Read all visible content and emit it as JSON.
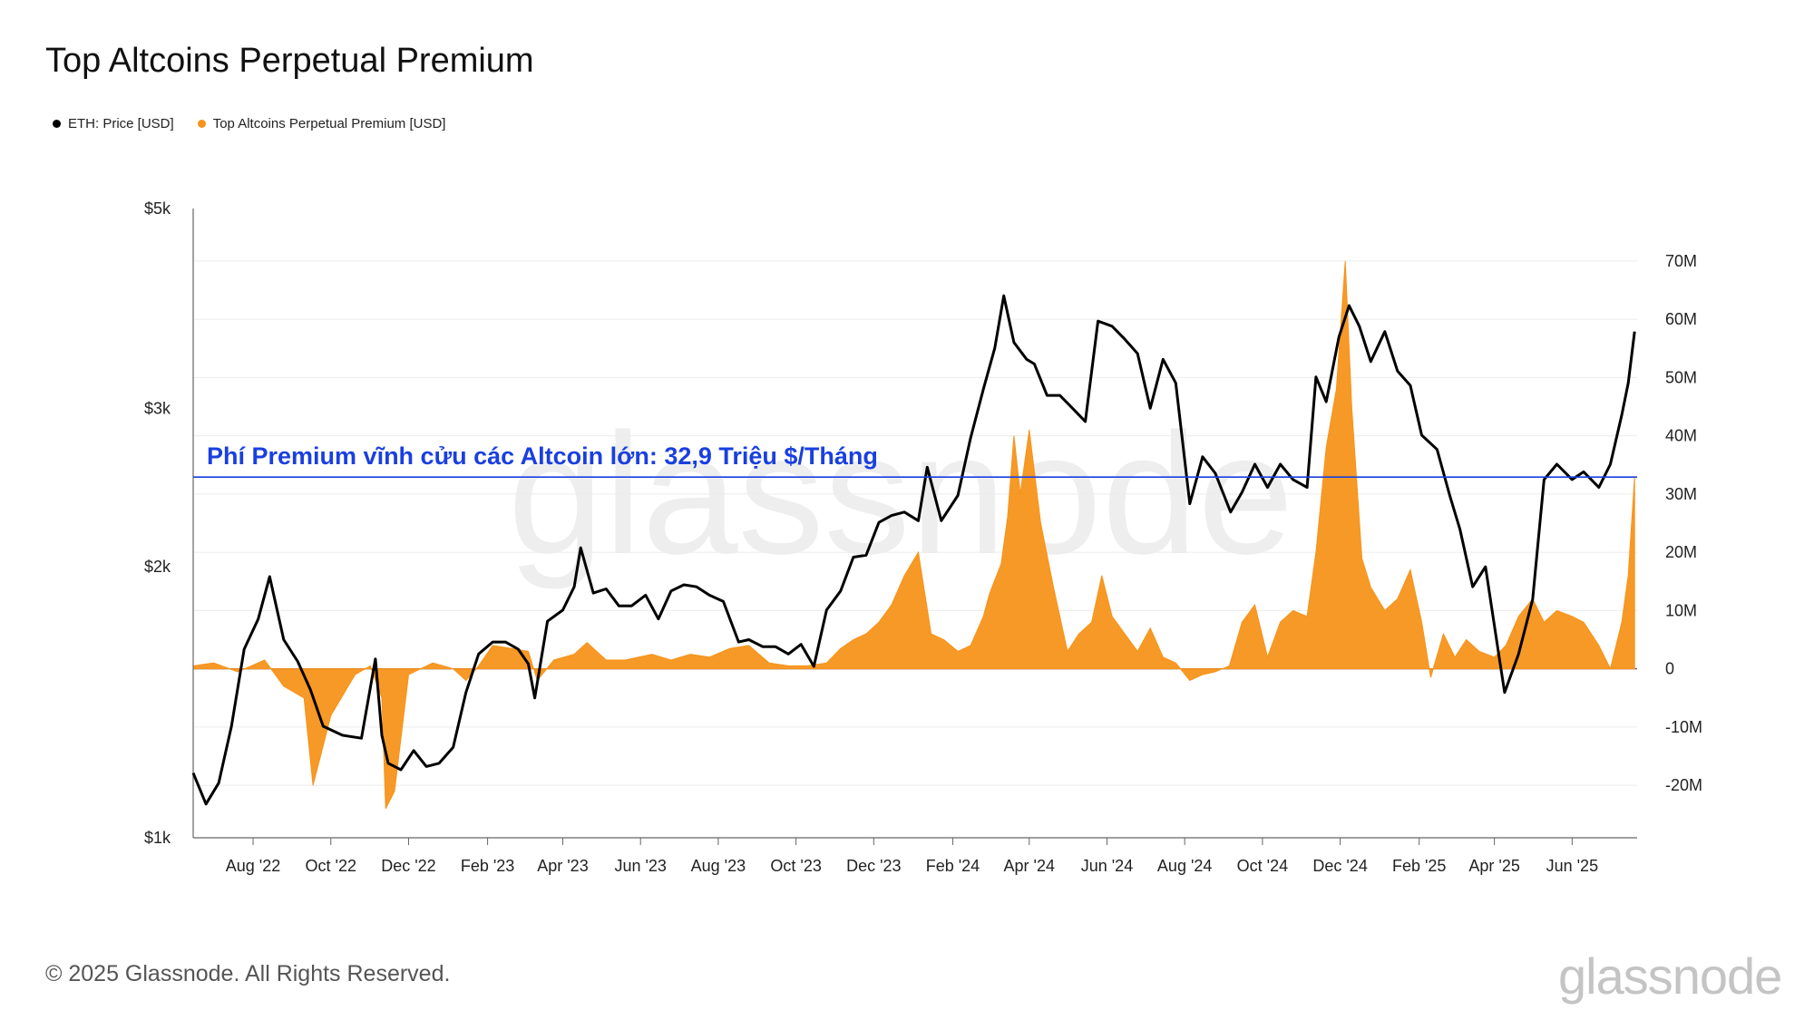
{
  "header": {
    "title": "Top Altcoins Perpetual Premium"
  },
  "legend": [
    {
      "label": "ETH: Price [USD]",
      "color": "#000000"
    },
    {
      "label": "Top Altcoins Perpetual Premium [USD]",
      "color": "#f7931a"
    }
  ],
  "footer": {
    "copyright": "© 2025 Glassnode. All Rights Reserved.",
    "brand": "glassnode",
    "watermark": "glassnode"
  },
  "chart_data": {
    "type": "line",
    "title": "Top Altcoins Perpetual Premium",
    "x_tick_labels": [
      "Aug '22",
      "Oct '22",
      "Dec '22",
      "Feb '23",
      "Apr '23",
      "Jun '23",
      "Aug '23",
      "Oct '23",
      "Dec '23",
      "Feb '24",
      "Apr '24",
      "Jun '24",
      "Aug '24",
      "Oct '24",
      "Dec '24",
      "Feb '25",
      "Apr '25",
      "Jun '25"
    ],
    "y_left": {
      "scale": "log",
      "ticks": [
        "$1k",
        "$2k",
        "$3k",
        "$5k"
      ],
      "values": [
        1000,
        2000,
        3000,
        5000
      ],
      "range": [
        1000,
        5000
      ]
    },
    "y_right": {
      "scale": "linear",
      "ticks": [
        "70M",
        "60M",
        "50M",
        "40M",
        "30M",
        "20M",
        "10M",
        "0",
        "-10M",
        "-20M"
      ],
      "values": [
        70,
        60,
        50,
        40,
        30,
        20,
        10,
        0,
        -10,
        -20
      ],
      "range": [
        -29,
        79
      ]
    },
    "annotation": {
      "text": "Phí  Premium vĩnh cửu các Altcoin lớn: 32,9 Triệu $/Tháng",
      "value": 32.9,
      "color": "#1a3fe0"
    },
    "grid": true,
    "legend_position": "top-left",
    "series": [
      {
        "name": "ETH: Price [USD]",
        "axis": "left",
        "color": "#000000",
        "kind": "line",
        "x": [
          "2022-06-15",
          "2022-06-25",
          "2022-07-05",
          "2022-07-15",
          "2022-07-25",
          "2022-08-05",
          "2022-08-14",
          "2022-08-25",
          "2022-09-05",
          "2022-09-15",
          "2022-09-25",
          "2022-10-10",
          "2022-10-25",
          "2022-11-05",
          "2022-11-10",
          "2022-11-15",
          "2022-11-25",
          "2022-12-05",
          "2022-12-15",
          "2022-12-25",
          "2023-01-05",
          "2023-01-15",
          "2023-01-25",
          "2023-02-05",
          "2023-02-15",
          "2023-02-25",
          "2023-03-05",
          "2023-03-10",
          "2023-03-20",
          "2023-04-01",
          "2023-04-10",
          "2023-04-15",
          "2023-04-25",
          "2023-05-05",
          "2023-05-15",
          "2023-05-25",
          "2023-06-05",
          "2023-06-15",
          "2023-06-25",
          "2023-07-05",
          "2023-07-15",
          "2023-07-25",
          "2023-08-05",
          "2023-08-17",
          "2023-08-25",
          "2023-09-05",
          "2023-09-15",
          "2023-09-25",
          "2023-10-05",
          "2023-10-15",
          "2023-10-25",
          "2023-11-05",
          "2023-11-15",
          "2023-11-25",
          "2023-12-05",
          "2023-12-15",
          "2023-12-25",
          "2024-01-05",
          "2024-01-12",
          "2024-01-23",
          "2024-02-05",
          "2024-02-15",
          "2024-02-25",
          "2024-03-05",
          "2024-03-12",
          "2024-03-20",
          "2024-03-30",
          "2024-04-05",
          "2024-04-15",
          "2024-04-25",
          "2024-05-05",
          "2024-05-15",
          "2024-05-25",
          "2024-06-05",
          "2024-06-15",
          "2024-06-25",
          "2024-07-05",
          "2024-07-15",
          "2024-07-25",
          "2024-08-05",
          "2024-08-15",
          "2024-08-25",
          "2024-09-06",
          "2024-09-15",
          "2024-09-25",
          "2024-10-05",
          "2024-10-15",
          "2024-10-25",
          "2024-11-05",
          "2024-11-12",
          "2024-11-20",
          "2024-11-30",
          "2024-12-08",
          "2024-12-16",
          "2024-12-25",
          "2025-01-05",
          "2025-01-15",
          "2025-01-25",
          "2025-02-03",
          "2025-02-15",
          "2025-02-25",
          "2025-03-05",
          "2025-03-15",
          "2025-03-25",
          "2025-04-05",
          "2025-04-09",
          "2025-04-20",
          "2025-05-01",
          "2025-05-10",
          "2025-05-20",
          "2025-06-01",
          "2025-06-10",
          "2025-06-22",
          "2025-07-01",
          "2025-07-10",
          "2025-07-15",
          "2025-07-20"
        ],
        "values": [
          1180,
          1090,
          1150,
          1330,
          1620,
          1750,
          1950,
          1660,
          1570,
          1460,
          1330,
          1300,
          1290,
          1580,
          1300,
          1210,
          1190,
          1250,
          1200,
          1210,
          1260,
          1450,
          1600,
          1650,
          1650,
          1620,
          1560,
          1430,
          1740,
          1790,
          1900,
          2100,
          1870,
          1890,
          1810,
          1810,
          1860,
          1750,
          1880,
          1910,
          1900,
          1860,
          1830,
          1650,
          1660,
          1630,
          1630,
          1600,
          1640,
          1550,
          1790,
          1880,
          2050,
          2060,
          2240,
          2280,
          2300,
          2250,
          2580,
          2250,
          2400,
          2780,
          3150,
          3500,
          4000,
          3550,
          3400,
          3360,
          3100,
          3100,
          3000,
          2900,
          3750,
          3700,
          3580,
          3450,
          3000,
          3400,
          3200,
          2350,
          2650,
          2540,
          2300,
          2420,
          2600,
          2450,
          2600,
          2500,
          2450,
          3250,
          3050,
          3600,
          3900,
          3700,
          3380,
          3650,
          3300,
          3180,
          2800,
          2700,
          2400,
          2200,
          1900,
          2000,
          1580,
          1450,
          1600,
          1840,
          2500,
          2600,
          2500,
          2550,
          2450,
          2600,
          2950,
          3200,
          3650
        ]
      },
      {
        "name": "Top Altcoins Perpetual Premium [USD]",
        "axis": "right",
        "color": "#f7931a",
        "kind": "area",
        "unit": "M USD",
        "x": [
          "2022-06-15",
          "2022-07-01",
          "2022-07-20",
          "2022-08-10",
          "2022-08-25",
          "2022-09-10",
          "2022-09-17",
          "2022-10-01",
          "2022-10-20",
          "2022-11-01",
          "2022-11-10",
          "2022-11-13",
          "2022-11-20",
          "2022-12-01",
          "2022-12-20",
          "2023-01-05",
          "2023-01-15",
          "2023-01-25",
          "2023-02-05",
          "2023-02-20",
          "2023-03-05",
          "2023-03-12",
          "2023-03-25",
          "2023-04-10",
          "2023-04-20",
          "2023-05-05",
          "2023-05-20",
          "2023-06-10",
          "2023-06-25",
          "2023-07-10",
          "2023-07-25",
          "2023-08-10",
          "2023-08-25",
          "2023-09-10",
          "2023-09-25",
          "2023-10-10",
          "2023-10-25",
          "2023-11-05",
          "2023-11-15",
          "2023-11-25",
          "2023-12-05",
          "2023-12-15",
          "2023-12-25",
          "2024-01-05",
          "2024-01-15",
          "2024-01-25",
          "2024-02-05",
          "2024-02-15",
          "2024-02-25",
          "2024-03-01",
          "2024-03-10",
          "2024-03-15",
          "2024-03-20",
          "2024-03-25",
          "2024-04-01",
          "2024-04-10",
          "2024-04-20",
          "2024-05-01",
          "2024-05-10",
          "2024-05-20",
          "2024-05-28",
          "2024-06-05",
          "2024-06-15",
          "2024-06-25",
          "2024-07-05",
          "2024-07-15",
          "2024-07-25",
          "2024-08-05",
          "2024-08-15",
          "2024-08-25",
          "2024-09-05",
          "2024-09-15",
          "2024-09-25",
          "2024-10-05",
          "2024-10-15",
          "2024-10-25",
          "2024-11-05",
          "2024-11-12",
          "2024-11-20",
          "2024-11-28",
          "2024-12-05",
          "2024-12-10",
          "2024-12-18",
          "2024-12-25",
          "2025-01-05",
          "2025-01-15",
          "2025-01-25",
          "2025-02-03",
          "2025-02-10",
          "2025-02-20",
          "2025-03-01",
          "2025-03-10",
          "2025-03-20",
          "2025-04-01",
          "2025-04-10",
          "2025-04-20",
          "2025-05-01",
          "2025-05-10",
          "2025-05-20",
          "2025-06-01",
          "2025-06-10",
          "2025-06-22",
          "2025-07-01",
          "2025-07-10",
          "2025-07-15",
          "2025-07-20"
        ],
        "values": [
          0.5,
          1,
          -0.5,
          1.5,
          -3,
          -5,
          -20,
          -8,
          -1,
          0.5,
          -5,
          -24,
          -21,
          -1,
          1,
          0,
          -2,
          0.5,
          4,
          3.5,
          3,
          -2,
          1.5,
          2.5,
          4.5,
          1.5,
          1.5,
          2.5,
          1.5,
          2.5,
          2,
          3.5,
          4,
          1,
          0.5,
          0.5,
          1,
          3.5,
          5,
          6,
          8,
          11,
          16,
          20,
          6,
          5,
          3,
          4,
          9,
          13,
          18,
          26,
          40,
          30,
          41,
          25,
          14,
          3,
          6,
          8,
          16,
          9,
          6,
          3,
          7,
          2,
          1,
          -2,
          -1,
          -0.5,
          0.5,
          8,
          11,
          2,
          8,
          10,
          9,
          20,
          38,
          48,
          70,
          45,
          19,
          14,
          10,
          12,
          17,
          8,
          -1.5,
          6,
          2,
          5,
          3,
          2,
          4,
          9,
          12,
          8,
          10,
          9,
          8,
          4,
          0,
          8,
          16,
          32.9
        ]
      }
    ]
  }
}
